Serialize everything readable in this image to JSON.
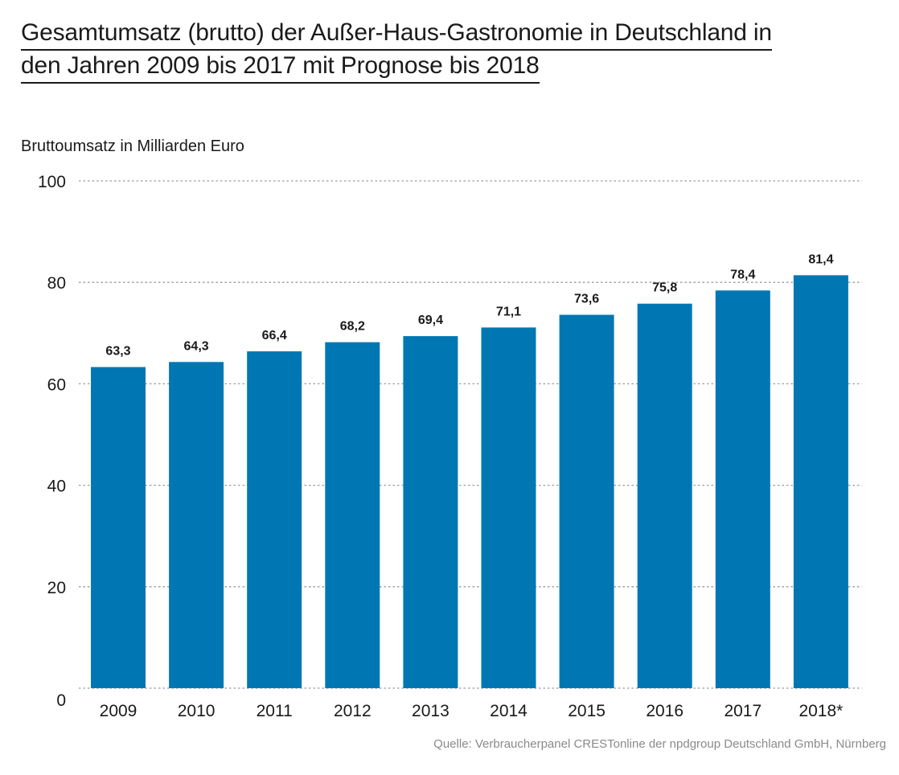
{
  "title_lines": [
    "Gesamtumsatz (brutto) der Außer-Haus-Gastronomie in Deutschland in",
    "den Jahren 2009 bis 2017 mit Prognose bis 2018"
  ],
  "source": "Quelle: Verbraucherpanel CRESTonline der npdgroup Deutschland GmbH, Nürnberg",
  "colors": {
    "bar": "#0077b3",
    "grid": "#9a9a9a",
    "text": "#1a1a1a"
  },
  "chart_data": {
    "type": "bar",
    "title": "Gesamtumsatz (brutto) der Außer-Haus-Gastronomie in Deutschland in den Jahren 2009 bis 2017 mit Prognose bis 2018",
    "ylabel": "Bruttoumsatz in Milliarden Euro",
    "xlabel": "",
    "categories": [
      "2009",
      "2010",
      "2011",
      "2012",
      "2013",
      "2014",
      "2015",
      "2016",
      "2017",
      "2018*"
    ],
    "values": [
      63.3,
      64.3,
      66.4,
      68.2,
      69.4,
      71.1,
      73.6,
      75.8,
      78.4,
      81.4
    ],
    "value_labels": [
      "63,3",
      "64,3",
      "66,4",
      "68,2",
      "69,4",
      "71,1",
      "73,6",
      "75,8",
      "78,4",
      "81,4"
    ],
    "ylim": [
      0,
      100
    ],
    "yticks": [
      0,
      20,
      40,
      60,
      80,
      100
    ],
    "grid": true,
    "grid_style": "dotted",
    "legend": "none"
  }
}
